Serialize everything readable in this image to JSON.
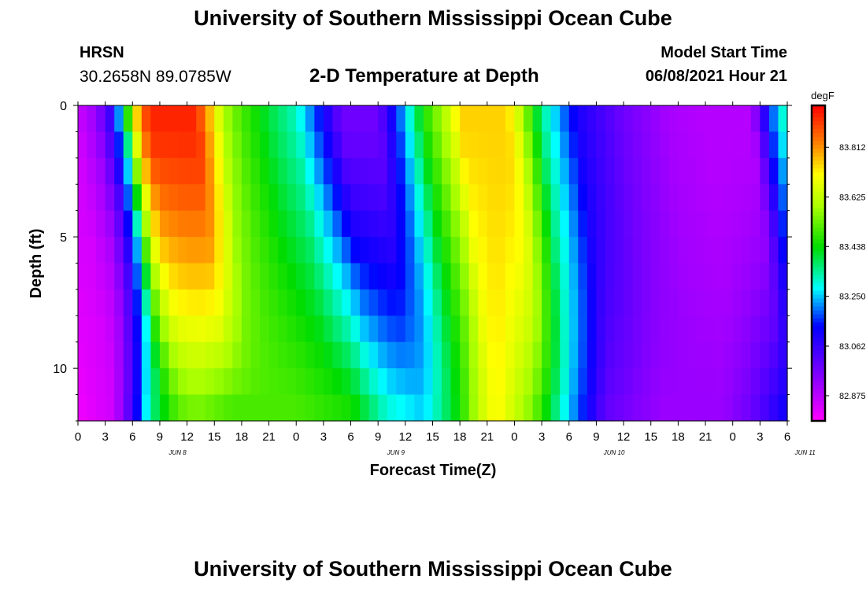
{
  "header": {
    "title_top": "University of Southern Mississippi Ocean Cube",
    "title_bottom": "University of Southern Mississippi Ocean Cube",
    "station": "HRSN",
    "coords": "30.2658N  89.0785W",
    "subtitle": "2-D Temperature at Depth",
    "model_start_label": "Model Start Time",
    "model_start_value": "06/08/2021 Hour 21"
  },
  "chart_data": {
    "type": "heatmap",
    "xlabel": "Forecast Time(Z)",
    "ylabel": "Depth (ft)",
    "x_ticks": [
      "0",
      "3",
      "6",
      "9",
      "12",
      "15",
      "18",
      "21",
      "0",
      "3",
      "6",
      "9",
      "12",
      "15",
      "18",
      "21",
      "0",
      "3",
      "6",
      "9",
      "12",
      "15",
      "18",
      "21",
      "0",
      "3",
      "6"
    ],
    "day_labels": [
      {
        "label": "JUN 8",
        "hour": 12
      },
      {
        "label": "JUN 9",
        "hour": 36
      },
      {
        "label": "JUN 10",
        "hour": 60
      },
      {
        "label": "JUN 11",
        "hour": 81
      }
    ],
    "x_range_hours": [
      0,
      78
    ],
    "y_ticks": [
      0,
      5,
      10
    ],
    "ylim": [
      0,
      12
    ],
    "depth_levels": 12,
    "colorbar": {
      "unit": "degF",
      "tick_labels": [
        "83.812",
        "83.625",
        "83.438",
        "83.250",
        "83.062",
        "82.875"
      ],
      "tick_values": [
        83.812,
        83.625,
        83.438,
        83.25,
        83.062,
        82.875
      ],
      "vmin": 82.78,
      "vmax": 83.97
    },
    "surface_temps": [
      {
        "h": 0,
        "v": 82.85
      },
      {
        "h": 2,
        "v": 82.92
      },
      {
        "h": 3.5,
        "v": 83.05
      },
      {
        "h": 5,
        "v": 83.3
      },
      {
        "h": 6,
        "v": 83.65
      },
      {
        "h": 7,
        "v": 83.85
      },
      {
        "h": 8,
        "v": 83.93
      },
      {
        "h": 13,
        "v": 83.93
      },
      {
        "h": 15,
        "v": 83.72
      },
      {
        "h": 16,
        "v": 83.6
      },
      {
        "h": 18,
        "v": 83.5
      },
      {
        "h": 21,
        "v": 83.4
      },
      {
        "h": 24,
        "v": 83.32
      },
      {
        "h": 27,
        "v": 83.12
      },
      {
        "h": 29,
        "v": 82.98
      },
      {
        "h": 33,
        "v": 82.98
      },
      {
        "h": 35,
        "v": 83.15
      },
      {
        "h": 36.5,
        "v": 83.3
      },
      {
        "h": 38,
        "v": 83.45
      },
      {
        "h": 41,
        "v": 83.65
      },
      {
        "h": 42,
        "v": 83.75
      },
      {
        "h": 47,
        "v": 83.75
      },
      {
        "h": 48,
        "v": 83.7
      },
      {
        "h": 51,
        "v": 83.35
      },
      {
        "h": 55,
        "v": 83.1
      },
      {
        "h": 60,
        "v": 82.98
      },
      {
        "h": 65,
        "v": 82.9
      },
      {
        "h": 69,
        "v": 82.88
      },
      {
        "h": 74,
        "v": 82.88
      },
      {
        "h": 75,
        "v": 83.0
      },
      {
        "h": 76,
        "v": 83.15
      },
      {
        "h": 78,
        "v": 83.35
      }
    ],
    "bottom_temps": [
      {
        "h": 0,
        "v": 82.8
      },
      {
        "h": 4,
        "v": 82.85
      },
      {
        "h": 6,
        "v": 83.05
      },
      {
        "h": 8,
        "v": 83.35
      },
      {
        "h": 11,
        "v": 83.52
      },
      {
        "h": 13,
        "v": 83.55
      },
      {
        "h": 17,
        "v": 83.5
      },
      {
        "h": 24,
        "v": 83.5
      },
      {
        "h": 30,
        "v": 83.45
      },
      {
        "h": 34,
        "v": 83.3
      },
      {
        "h": 38,
        "v": 83.25
      },
      {
        "h": 42,
        "v": 83.45
      },
      {
        "h": 44,
        "v": 83.62
      },
      {
        "h": 46,
        "v": 83.72
      },
      {
        "h": 50,
        "v": 83.55
      },
      {
        "h": 54,
        "v": 83.25
      },
      {
        "h": 58,
        "v": 83.0
      },
      {
        "h": 64,
        "v": 82.92
      },
      {
        "h": 71,
        "v": 82.92
      },
      {
        "h": 74,
        "v": 82.98
      },
      {
        "h": 76,
        "v": 83.05
      },
      {
        "h": 78,
        "v": 83.12
      }
    ]
  }
}
